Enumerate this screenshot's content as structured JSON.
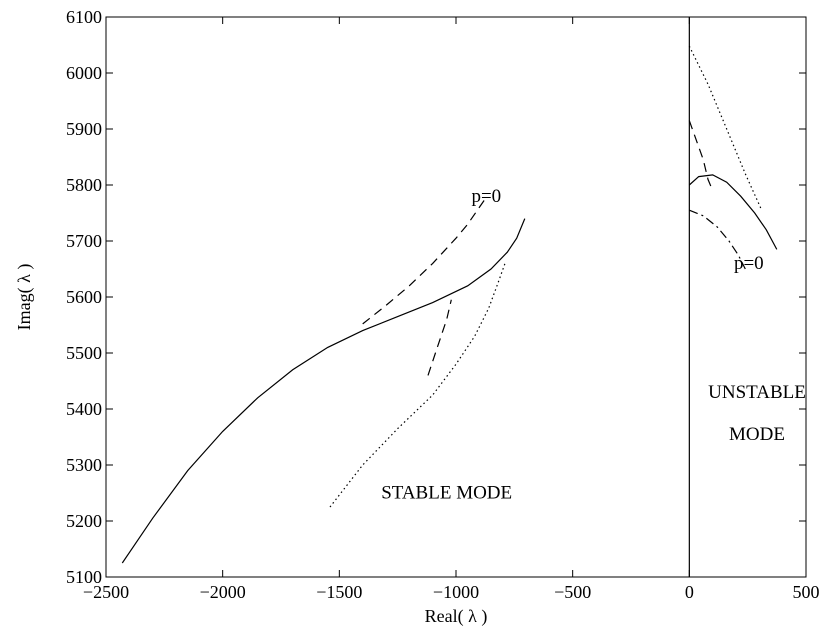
{
  "chart_data": {
    "type": "line",
    "title": "",
    "xlabel": "Real( λ )",
    "ylabel": "Imag( λ )",
    "xlim": [
      -2500,
      500
    ],
    "ylim": [
      5100,
      6100
    ],
    "xticks": [
      -2500,
      -2000,
      -1500,
      -1000,
      -500,
      0,
      500
    ],
    "yticks": [
      5100,
      5200,
      5300,
      5400,
      5500,
      5600,
      5700,
      5800,
      5900,
      6000,
      6100
    ],
    "xtick_labels": [
      "−2500",
      "−2000",
      "−1500",
      "−1000",
      "−500",
      "0",
      "500"
    ],
    "ytick_labels": [
      "5100",
      "5200",
      "5300",
      "5400",
      "5500",
      "5600",
      "5700",
      "5800",
      "5900",
      "6000",
      "6100"
    ],
    "grid": false,
    "vertical_line_x": 0,
    "annotations": [
      {
        "text": "p=0",
        "x": -870,
        "y": 5770
      },
      {
        "text": "p=0",
        "x": 255,
        "y": 5650
      },
      {
        "text": "STABLE MODE",
        "x": -1040,
        "y": 5240
      },
      {
        "text": "UNSTABLE",
        "x": 290,
        "y": 5420
      },
      {
        "text": "MODE",
        "x": 290,
        "y": 5345
      }
    ],
    "series": [
      {
        "style": "solid",
        "x": [
          -2430,
          -2300,
          -2150,
          -2000,
          -1850,
          -1700,
          -1550,
          -1400,
          -1250,
          -1100,
          -950,
          -850,
          -780,
          -740,
          -705
        ],
        "y": [
          5125,
          5205,
          5290,
          5360,
          5420,
          5470,
          5510,
          5540,
          5565,
          5590,
          5620,
          5650,
          5680,
          5705,
          5740
        ]
      },
      {
        "style": "dashed",
        "x": [
          -1400,
          -1300,
          -1200,
          -1100,
          -1000,
          -950,
          -900,
          -870
        ],
        "y": [
          5552,
          5585,
          5620,
          5660,
          5705,
          5730,
          5760,
          5778
        ]
      },
      {
        "style": "dashed",
        "x": [
          -1120,
          -1080,
          -1040,
          -1020
        ],
        "y": [
          5460,
          5510,
          5560,
          5595
        ]
      },
      {
        "style": "dotted",
        "x": [
          -1540,
          -1400,
          -1250,
          -1100,
          -1000,
          -920,
          -860,
          -820,
          -790
        ],
        "y": [
          5225,
          5300,
          5365,
          5425,
          5480,
          5530,
          5580,
          5625,
          5660
        ]
      },
      {
        "style": "solid",
        "x": [
          0,
          40,
          100,
          160,
          220,
          280,
          330,
          375
        ],
        "y": [
          5800,
          5815,
          5818,
          5805,
          5780,
          5750,
          5720,
          5685
        ]
      },
      {
        "style": "dashed",
        "x": [
          0,
          30,
          60,
          80,
          95
        ],
        "y": [
          5915,
          5880,
          5845,
          5810,
          5795
        ]
      },
      {
        "style": "dashdot",
        "x": [
          0,
          60,
          120,
          170,
          210,
          240
        ],
        "y": [
          5755,
          5745,
          5725,
          5700,
          5675,
          5650
        ]
      },
      {
        "style": "dotted",
        "x": [
          0,
          80,
          160,
          240,
          310
        ],
        "y": [
          6048,
          5980,
          5900,
          5820,
          5755
        ]
      }
    ]
  }
}
